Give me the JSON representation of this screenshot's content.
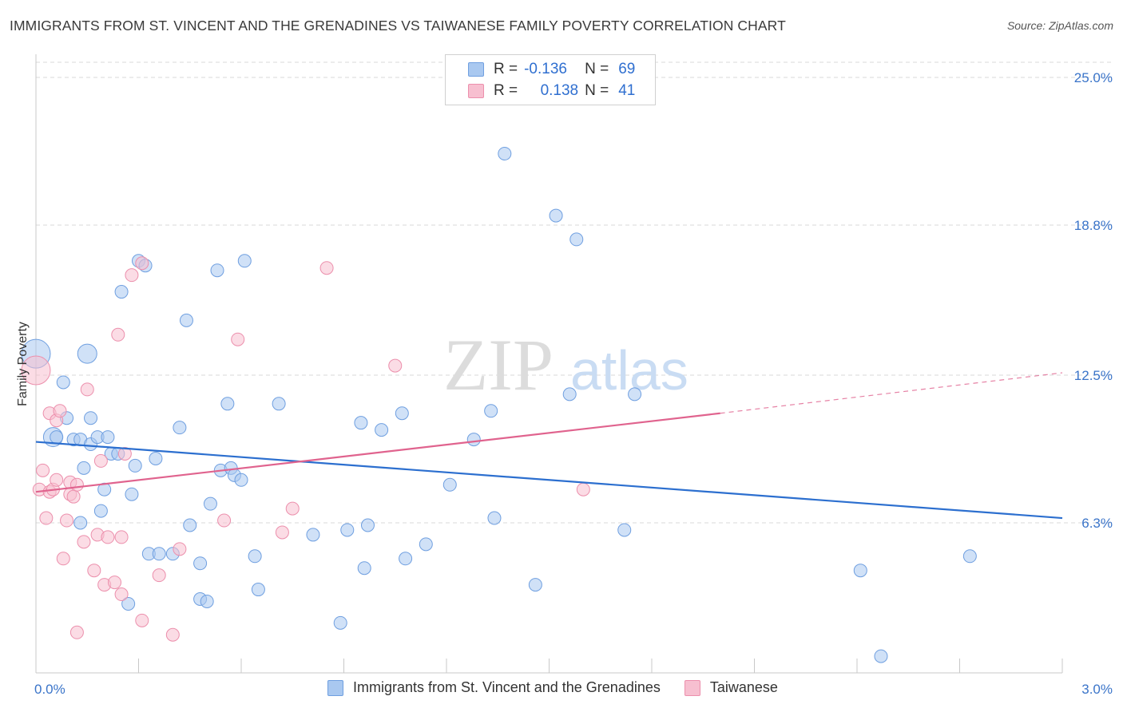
{
  "title": "IMMIGRANTS FROM ST. VINCENT AND THE GRENADINES VS TAIWANESE FAMILY POVERTY CORRELATION CHART",
  "source": "Source: ZipAtlas.com",
  "watermark": {
    "zip": "ZIP",
    "atlas": "atlas"
  },
  "colors": {
    "blue_fill": "#a9c8f0",
    "blue_stroke": "#6f9fe0",
    "blue_line": "#2c6fcf",
    "pink_fill": "#f7bfd0",
    "pink_stroke": "#ec8fac",
    "pink_line": "#e0638e",
    "axis_label": "#3a74c9",
    "grid": "#d9d9d9"
  },
  "legend_top": {
    "rows": [
      {
        "r_label": "R =",
        "r_value": "-0.136",
        "n_label": "N =",
        "n_value": "69"
      },
      {
        "r_label": "R =",
        "r_value": "0.138",
        "n_label": "N =",
        "n_value": "41"
      }
    ]
  },
  "legend_bottom": {
    "items": [
      {
        "label": "Immigrants from St. Vincent and the Grenadines"
      },
      {
        "label": "Taiwanese"
      }
    ]
  },
  "chart_data": {
    "type": "scatter",
    "title": "IMMIGRANTS FROM ST. VINCENT AND THE GRENADINES VS TAIWANESE FAMILY POVERTY CORRELATION CHART",
    "xlabel": "",
    "ylabel": "Family Poverty",
    "xlim": [
      0.0,
      3.0
    ],
    "ylim": [
      0.0,
      25.0
    ],
    "x_tick_labels": [
      "0.0%",
      "3.0%"
    ],
    "y_ticks": [
      6.3,
      12.5,
      18.8,
      25.0
    ],
    "y_tick_labels": [
      "6.3%",
      "12.5%",
      "18.8%",
      "25.0%"
    ],
    "grid": true,
    "legend": "top-center",
    "series": [
      {
        "name": "Immigrants from St. Vincent and the Grenadines",
        "color": "#a9c8f0",
        "r": -0.136,
        "n": 69,
        "trend": {
          "x": [
            0.0,
            3.0
          ],
          "y": [
            9.7,
            6.5
          ]
        },
        "points": [
          {
            "x": 0.0,
            "y": 13.4,
            "s": 3
          },
          {
            "x": 0.15,
            "y": 13.4,
            "s": 2
          },
          {
            "x": 0.05,
            "y": 9.9,
            "s": 2
          },
          {
            "x": 0.08,
            "y": 12.2,
            "s": 1
          },
          {
            "x": 0.06,
            "y": 9.9,
            "s": 1
          },
          {
            "x": 0.09,
            "y": 10.7,
            "s": 1
          },
          {
            "x": 0.11,
            "y": 9.8,
            "s": 1
          },
          {
            "x": 0.13,
            "y": 9.8,
            "s": 1
          },
          {
            "x": 0.14,
            "y": 8.6,
            "s": 1
          },
          {
            "x": 0.13,
            "y": 6.3,
            "s": 1
          },
          {
            "x": 0.16,
            "y": 9.6,
            "s": 1
          },
          {
            "x": 0.16,
            "y": 10.7,
            "s": 1
          },
          {
            "x": 0.18,
            "y": 9.9,
            "s": 1
          },
          {
            "x": 0.19,
            "y": 6.8,
            "s": 1
          },
          {
            "x": 0.2,
            "y": 7.7,
            "s": 1
          },
          {
            "x": 0.21,
            "y": 9.9,
            "s": 1
          },
          {
            "x": 0.22,
            "y": 9.2,
            "s": 1
          },
          {
            "x": 0.24,
            "y": 9.2,
            "s": 1
          },
          {
            "x": 0.25,
            "y": 16.0,
            "s": 1
          },
          {
            "x": 0.27,
            "y": 2.9,
            "s": 1
          },
          {
            "x": 0.28,
            "y": 7.5,
            "s": 1
          },
          {
            "x": 0.29,
            "y": 8.7,
            "s": 1
          },
          {
            "x": 0.3,
            "y": 17.3,
            "s": 1
          },
          {
            "x": 0.32,
            "y": 17.1,
            "s": 1
          },
          {
            "x": 0.33,
            "y": 5.0,
            "s": 1
          },
          {
            "x": 0.35,
            "y": 9.0,
            "s": 1
          },
          {
            "x": 0.36,
            "y": 5.0,
            "s": 1
          },
          {
            "x": 0.4,
            "y": 5.0,
            "s": 1
          },
          {
            "x": 0.42,
            "y": 10.3,
            "s": 1
          },
          {
            "x": 0.44,
            "y": 14.8,
            "s": 1
          },
          {
            "x": 0.45,
            "y": 6.2,
            "s": 1
          },
          {
            "x": 0.48,
            "y": 4.6,
            "s": 1
          },
          {
            "x": 0.48,
            "y": 3.1,
            "s": 1
          },
          {
            "x": 0.5,
            "y": 3.0,
            "s": 1
          },
          {
            "x": 0.51,
            "y": 7.1,
            "s": 1
          },
          {
            "x": 0.53,
            "y": 16.9,
            "s": 1
          },
          {
            "x": 0.54,
            "y": 8.5,
            "s": 1
          },
          {
            "x": 0.56,
            "y": 11.3,
            "s": 1
          },
          {
            "x": 0.57,
            "y": 8.6,
            "s": 1
          },
          {
            "x": 0.58,
            "y": 8.3,
            "s": 1
          },
          {
            "x": 0.6,
            "y": 8.1,
            "s": 1
          },
          {
            "x": 0.61,
            "y": 17.3,
            "s": 1
          },
          {
            "x": 0.64,
            "y": 4.9,
            "s": 1
          },
          {
            "x": 0.65,
            "y": 3.5,
            "s": 1
          },
          {
            "x": 0.71,
            "y": 11.3,
            "s": 1
          },
          {
            "x": 0.81,
            "y": 5.8,
            "s": 1
          },
          {
            "x": 0.89,
            "y": 2.1,
            "s": 1
          },
          {
            "x": 0.91,
            "y": 6.0,
            "s": 1
          },
          {
            "x": 0.95,
            "y": 10.5,
            "s": 1
          },
          {
            "x": 0.96,
            "y": 4.4,
            "s": 1
          },
          {
            "x": 0.97,
            "y": 6.2,
            "s": 1
          },
          {
            "x": 1.01,
            "y": 10.2,
            "s": 1
          },
          {
            "x": 1.07,
            "y": 10.9,
            "s": 1
          },
          {
            "x": 1.08,
            "y": 4.8,
            "s": 1
          },
          {
            "x": 1.14,
            "y": 5.4,
            "s": 1
          },
          {
            "x": 1.21,
            "y": 7.9,
            "s": 1
          },
          {
            "x": 1.28,
            "y": 9.8,
            "s": 1
          },
          {
            "x": 1.34,
            "y": 6.5,
            "s": 1
          },
          {
            "x": 1.33,
            "y": 11.0,
            "s": 1
          },
          {
            "x": 1.37,
            "y": 21.8,
            "s": 1
          },
          {
            "x": 1.46,
            "y": 3.7,
            "s": 1
          },
          {
            "x": 1.52,
            "y": 19.2,
            "s": 1
          },
          {
            "x": 1.56,
            "y": 11.7,
            "s": 1
          },
          {
            "x": 1.58,
            "y": 18.2,
            "s": 1
          },
          {
            "x": 1.72,
            "y": 6.0,
            "s": 1
          },
          {
            "x": 1.75,
            "y": 11.7,
            "s": 1
          },
          {
            "x": 2.41,
            "y": 4.3,
            "s": 1
          },
          {
            "x": 2.47,
            "y": 0.7,
            "s": 1
          },
          {
            "x": 2.73,
            "y": 4.9,
            "s": 1
          }
        ]
      },
      {
        "name": "Taiwanese",
        "color": "#f7bfd0",
        "r": 0.138,
        "n": 41,
        "trend": {
          "x": [
            0.0,
            2.0
          ],
          "y": [
            7.6,
            10.9
          ],
          "dashed_to": {
            "x": 3.0,
            "y": 12.6
          }
        },
        "points": [
          {
            "x": 0.0,
            "y": 12.7,
            "s": 3
          },
          {
            "x": 0.02,
            "y": 8.5,
            "s": 1
          },
          {
            "x": 0.01,
            "y": 7.7,
            "s": 1
          },
          {
            "x": 0.03,
            "y": 6.5,
            "s": 1
          },
          {
            "x": 0.04,
            "y": 7.6,
            "s": 1
          },
          {
            "x": 0.04,
            "y": 10.9,
            "s": 1
          },
          {
            "x": 0.05,
            "y": 7.7,
            "s": 1
          },
          {
            "x": 0.06,
            "y": 8.1,
            "s": 1
          },
          {
            "x": 0.06,
            "y": 10.6,
            "s": 1
          },
          {
            "x": 0.07,
            "y": 11.0,
            "s": 1
          },
          {
            "x": 0.08,
            "y": 4.8,
            "s": 1
          },
          {
            "x": 0.09,
            "y": 6.4,
            "s": 1
          },
          {
            "x": 0.1,
            "y": 8.0,
            "s": 1
          },
          {
            "x": 0.1,
            "y": 7.5,
            "s": 1
          },
          {
            "x": 0.11,
            "y": 7.4,
            "s": 1
          },
          {
            "x": 0.12,
            "y": 7.9,
            "s": 1
          },
          {
            "x": 0.12,
            "y": 1.7,
            "s": 1
          },
          {
            "x": 0.14,
            "y": 5.5,
            "s": 1
          },
          {
            "x": 0.15,
            "y": 11.9,
            "s": 1
          },
          {
            "x": 0.17,
            "y": 4.3,
            "s": 1
          },
          {
            "x": 0.18,
            "y": 5.8,
            "s": 1
          },
          {
            "x": 0.19,
            "y": 8.9,
            "s": 1
          },
          {
            "x": 0.2,
            "y": 3.7,
            "s": 1
          },
          {
            "x": 0.21,
            "y": 5.7,
            "s": 1
          },
          {
            "x": 0.23,
            "y": 3.8,
            "s": 1
          },
          {
            "x": 0.24,
            "y": 14.2,
            "s": 1
          },
          {
            "x": 0.25,
            "y": 5.7,
            "s": 1
          },
          {
            "x": 0.25,
            "y": 3.3,
            "s": 1
          },
          {
            "x": 0.26,
            "y": 9.2,
            "s": 1
          },
          {
            "x": 0.28,
            "y": 16.7,
            "s": 1
          },
          {
            "x": 0.31,
            "y": 17.2,
            "s": 1
          },
          {
            "x": 0.31,
            "y": 2.2,
            "s": 1
          },
          {
            "x": 0.36,
            "y": 4.1,
            "s": 1
          },
          {
            "x": 0.4,
            "y": 1.6,
            "s": 1
          },
          {
            "x": 0.42,
            "y": 5.2,
            "s": 1
          },
          {
            "x": 0.55,
            "y": 6.4,
            "s": 1
          },
          {
            "x": 0.59,
            "y": 14.0,
            "s": 1
          },
          {
            "x": 0.72,
            "y": 5.9,
            "s": 1
          },
          {
            "x": 0.75,
            "y": 6.9,
            "s": 1
          },
          {
            "x": 0.85,
            "y": 17.0,
            "s": 1
          },
          {
            "x": 1.05,
            "y": 12.9,
            "s": 1
          },
          {
            "x": 1.6,
            "y": 7.7,
            "s": 1
          }
        ]
      }
    ]
  }
}
